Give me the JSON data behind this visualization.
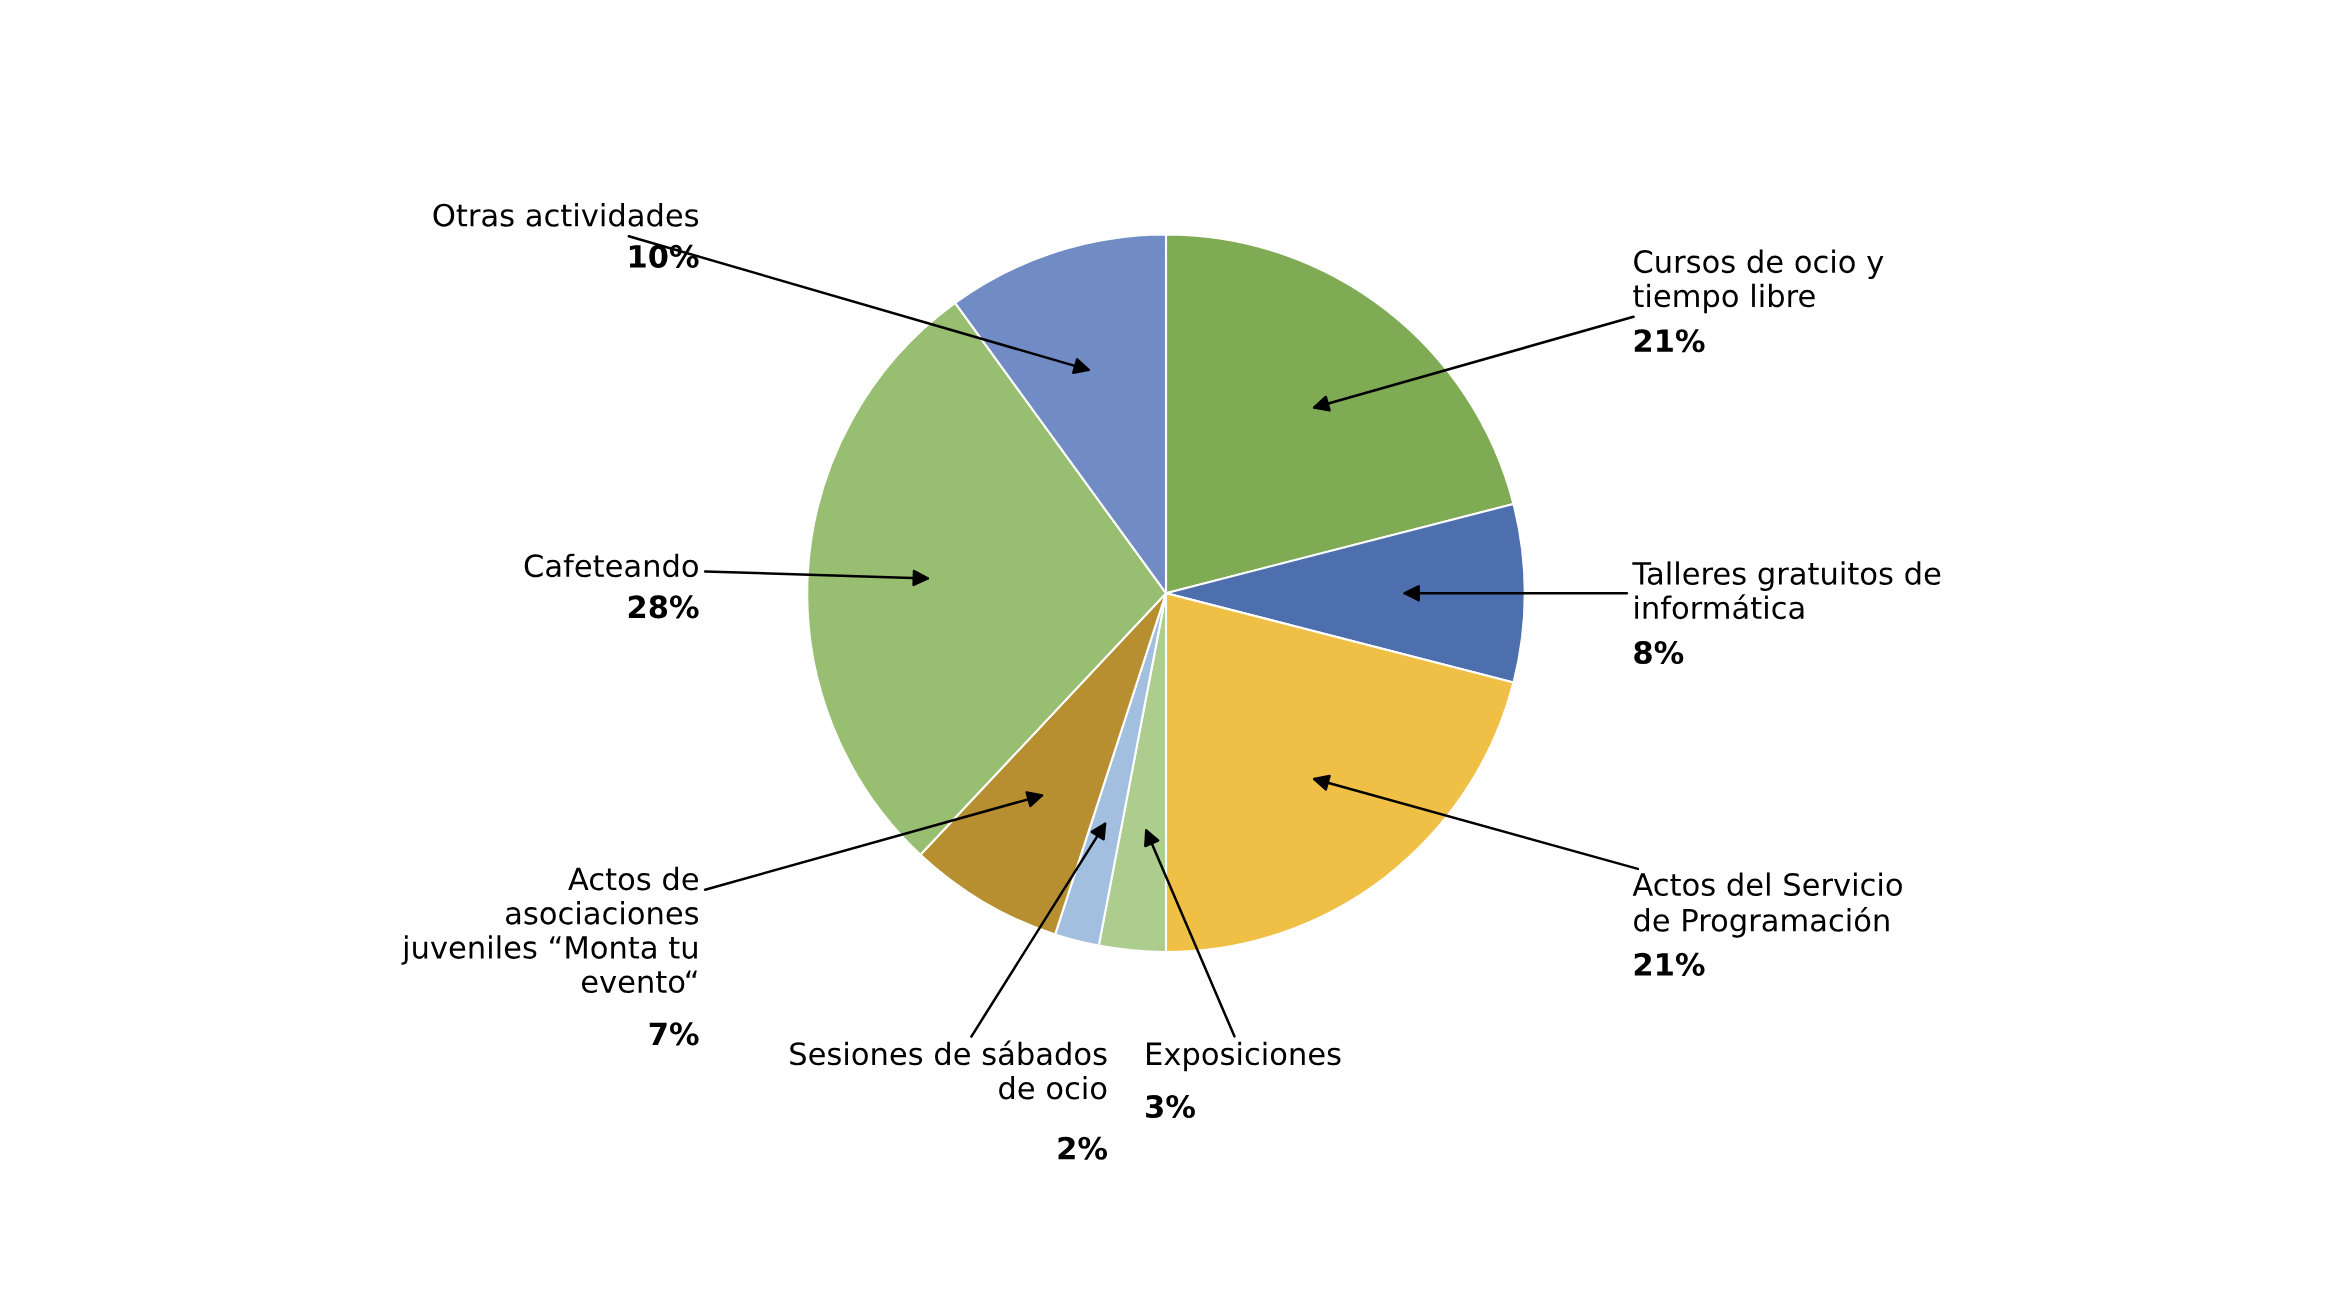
{
  "chart_data": {
    "type": "pie",
    "categories": [
      "Cursos de ocio y\ntiempo libre",
      "Talleres gratuitos de\ninformática",
      "Actos del Servicio\nde Programación",
      "Exposiciones",
      "Sesiones de sábados\nde ocio",
      "Actos de\nasociaciones\njuveniles “Monta tu\nevento“",
      "Cafeteando",
      "Otras actividades"
    ],
    "values": [
      21,
      8,
      21,
      3,
      2,
      7,
      28,
      10
    ],
    "value_labels": [
      "21%",
      "8%",
      "21%",
      "3%",
      "2%",
      "7%",
      "28%",
      "10%"
    ],
    "colors": [
      "#7fab55",
      "#4e6fae",
      "#efbf46",
      "#adcd8f",
      "#a2bfe0",
      "#b78f31",
      "#97be71",
      "#718bc4"
    ]
  }
}
